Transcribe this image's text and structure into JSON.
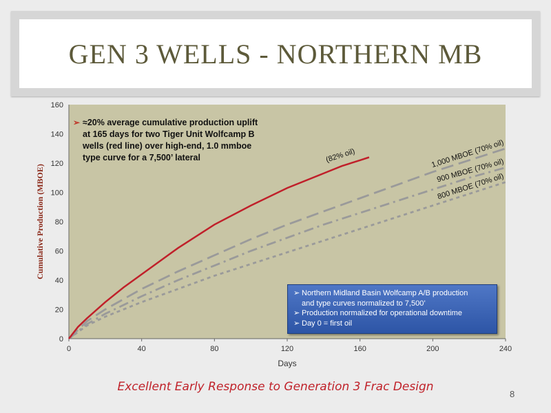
{
  "slide": {
    "title": "Gen 3 Wells - Northern MB",
    "footer": "Excellent Early Response to Generation 3 Frac Design",
    "page_number": "8"
  },
  "annotation": {
    "bullet": "➢",
    "lines": [
      "≈20% average cumulative production uplift",
      "at 165 days for two Tiger Unit Wolfcamp B",
      "wells (red line) over high-end, 1.0 mmboe",
      "type curve for a 7,500’ lateral"
    ]
  },
  "legend_box": {
    "items": [
      "Northern Midland Basin Wolfcamp A/B production",
      "and type curves normalized to 7,500’",
      "Production normalized for operational downtime",
      "Day 0 = first oil"
    ]
  },
  "colors": {
    "plot_bg": "#c8c5a5",
    "red_series": "#c0202a",
    "gray_series": "#9a9a9a",
    "title": "#5d5a3a",
    "legend_bg": "#3b63b5"
  },
  "chart_data": {
    "type": "line",
    "xlabel": "Days",
    "ylabel": "Cumulative Production (MBOE)",
    "xlim": [
      0,
      240
    ],
    "ylim": [
      0,
      160
    ],
    "x_ticks": [
      0,
      40,
      80,
      120,
      160,
      200,
      240
    ],
    "y_ticks": [
      0,
      20,
      40,
      60,
      80,
      100,
      120,
      140,
      160
    ],
    "series": [
      {
        "name": "",
        "label": "(82% oil)",
        "style": "solid",
        "color": "#c0202a",
        "x": [
          0,
          5,
          10,
          20,
          30,
          40,
          60,
          80,
          100,
          120,
          140,
          150,
          160,
          165
        ],
        "y": [
          0,
          8,
          14,
          25,
          35,
          44,
          62,
          78,
          91,
          103,
          113,
          118,
          122,
          124
        ]
      },
      {
        "name": "1,000 MBOE (70% oil)",
        "style": "dash",
        "color": "#9a9a9a",
        "x": [
          0,
          10,
          20,
          40,
          60,
          80,
          100,
          120,
          140,
          160,
          180,
          200,
          220,
          240
        ],
        "y": [
          0,
          12,
          20,
          34,
          46,
          57,
          68,
          78,
          87,
          96,
          105,
          114,
          122,
          130
        ]
      },
      {
        "name": "900 MBOE (70% oil)",
        "style": "dashdot",
        "color": "#9a9a9a",
        "x": [
          0,
          10,
          20,
          40,
          60,
          80,
          100,
          120,
          140,
          160,
          180,
          200,
          220,
          240
        ],
        "y": [
          0,
          10,
          17,
          29,
          40,
          50,
          60,
          69,
          78,
          86,
          94,
          102,
          110,
          117
        ]
      },
      {
        "name": "800 MBOE (70% oil)",
        "style": "dot",
        "color": "#9a9a9a",
        "x": [
          0,
          10,
          20,
          40,
          60,
          80,
          100,
          120,
          140,
          160,
          180,
          200,
          220,
          240
        ],
        "y": [
          0,
          9,
          15,
          25,
          34,
          43,
          51,
          59,
          67,
          75,
          83,
          91,
          99,
          107
        ]
      }
    ]
  }
}
